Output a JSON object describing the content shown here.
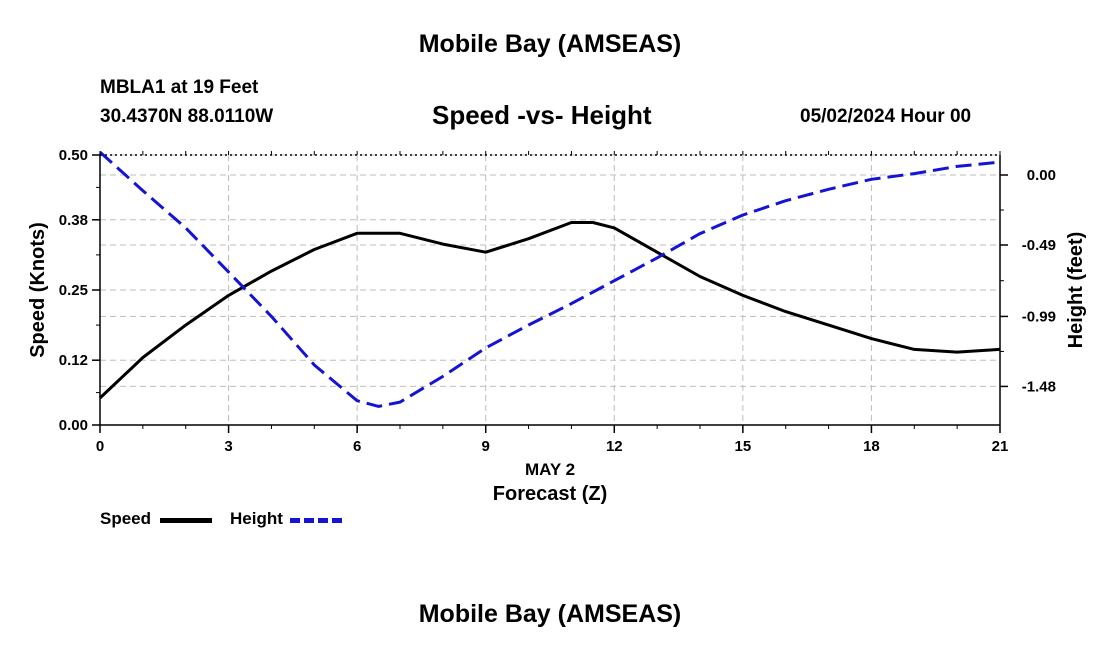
{
  "header": {
    "title": "Mobile Bay (AMSEAS)",
    "station": "MBLA1 at 19 Feet",
    "coords": "30.4370N  88.0110W",
    "subtitle": "Speed -vs- Height",
    "datetime": "05/02/2024 Hour 00"
  },
  "footer": {
    "title": "Mobile Bay (AMSEAS)"
  },
  "legend": {
    "speed_label": "Speed",
    "height_label": "Height"
  },
  "colors": {
    "speed": "#000000",
    "height": "#1414d2",
    "grid": "#bdbdbd"
  },
  "chart_data": {
    "type": "line",
    "xlabel": "Forecast (Z)",
    "xlabel_date": "MAY 2",
    "x_ticks": [
      "0",
      "3",
      "6",
      "9",
      "12",
      "15",
      "18",
      "21"
    ],
    "xlim": [
      0,
      21
    ],
    "y_left": {
      "label": "Speed (Knots)",
      "ticks": [
        "0.00",
        "0.12",
        "0.25",
        "0.38",
        "0.50"
      ],
      "lim": [
        0,
        0.5
      ]
    },
    "y_right": {
      "label": "Height (feet)",
      "ticks": [
        "0.00",
        "-0.49",
        "-0.99",
        "-1.48"
      ],
      "lim": [
        -1.75,
        0.14
      ]
    },
    "grid": true,
    "legend_position": "bottom-left",
    "series": [
      {
        "name": "Speed",
        "axis": "left",
        "style": "solid",
        "x": [
          0,
          1,
          2,
          3,
          4,
          5,
          6,
          7,
          8,
          9,
          10,
          11,
          11.5,
          12,
          13,
          14,
          15,
          16,
          17,
          18,
          19,
          20,
          21
        ],
        "y": [
          0.05,
          0.125,
          0.185,
          0.24,
          0.285,
          0.325,
          0.355,
          0.355,
          0.335,
          0.32,
          0.345,
          0.375,
          0.375,
          0.365,
          0.32,
          0.275,
          0.24,
          0.21,
          0.185,
          0.16,
          0.14,
          0.135,
          0.14
        ]
      },
      {
        "name": "Height",
        "axis": "right",
        "style": "dashed",
        "x": [
          0,
          1,
          2,
          3,
          4,
          5,
          6,
          6.5,
          7,
          8,
          9,
          10,
          11,
          12,
          13,
          14,
          15,
          16,
          17,
          18,
          19,
          20,
          21
        ],
        "y": [
          0.16,
          -0.11,
          -0.37,
          -0.68,
          -0.99,
          -1.33,
          -1.58,
          -1.62,
          -1.59,
          -1.41,
          -1.21,
          -1.05,
          -0.9,
          -0.74,
          -0.58,
          -0.41,
          -0.28,
          -0.18,
          -0.1,
          -0.03,
          0.01,
          0.06,
          0.09
        ]
      }
    ]
  }
}
